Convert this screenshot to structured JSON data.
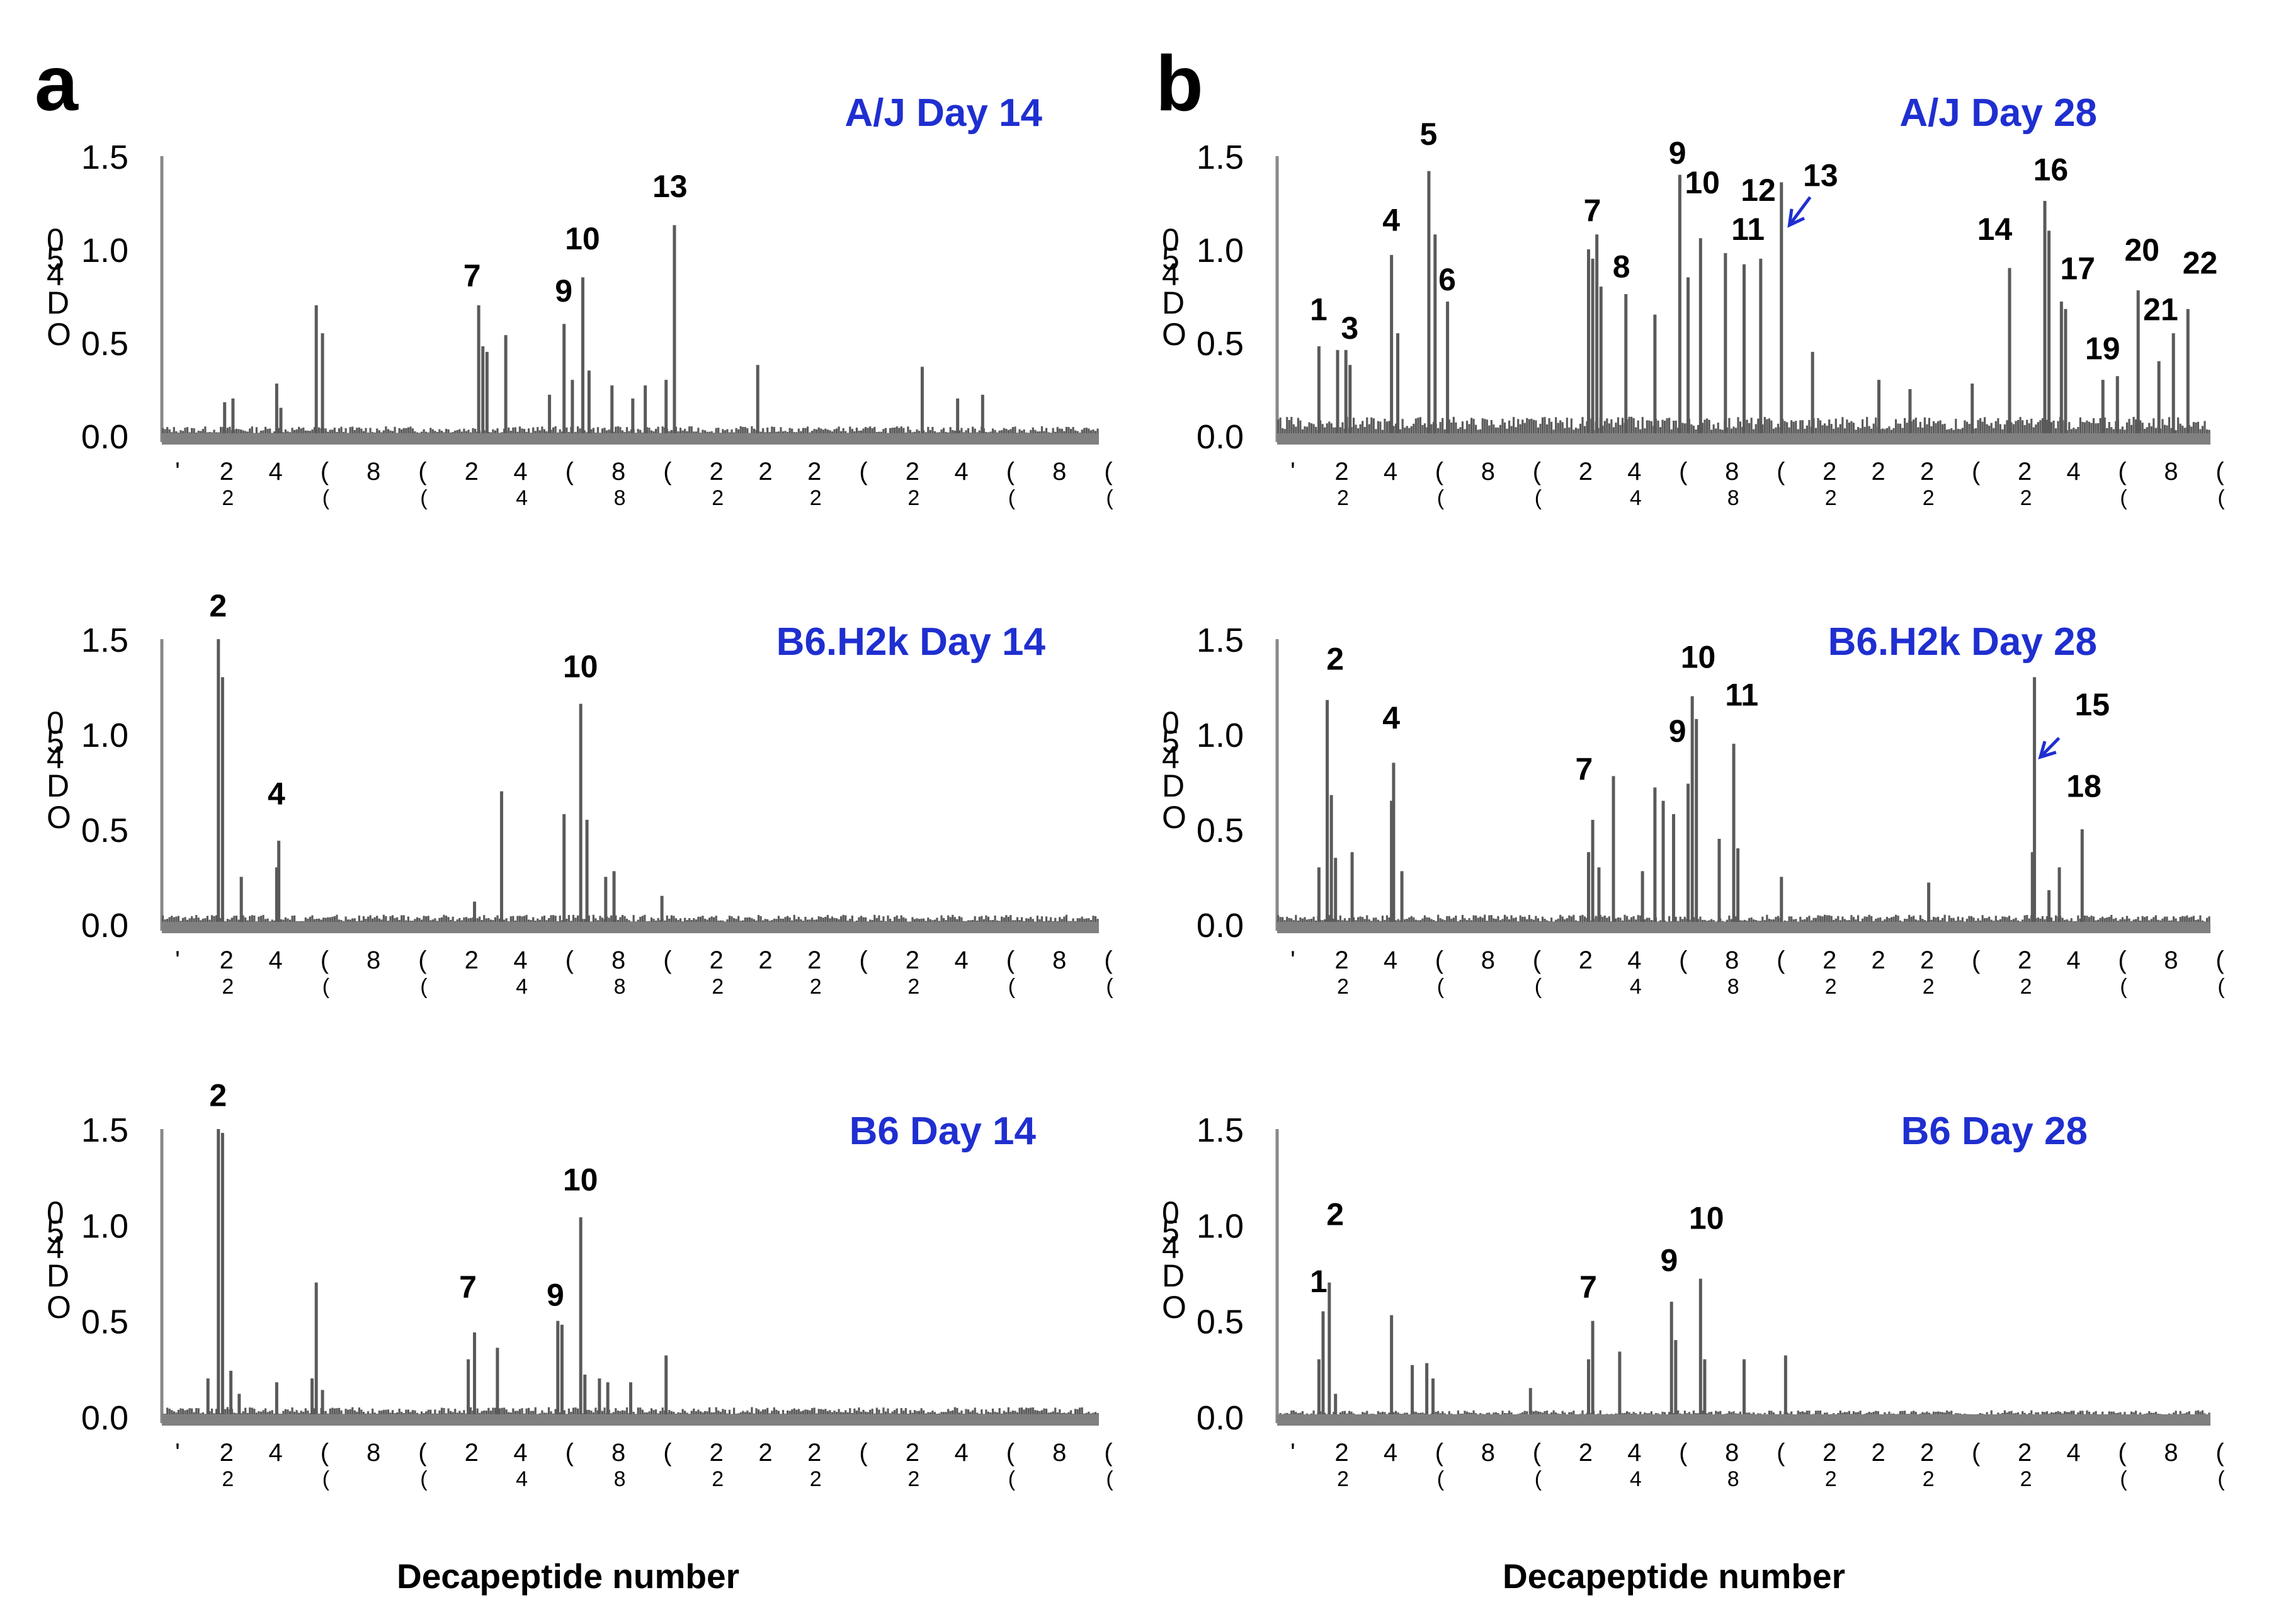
{
  "figure": {
    "panel_letters": [
      "a",
      "b"
    ],
    "xlabel": "Decapeptide number",
    "ylabel_glyphs": [
      "0",
      "5",
      "4",
      "D",
      "O"
    ],
    "tick_glyphs": [
      "'",
      "2",
      "4",
      "(",
      "8",
      "(",
      "2",
      "4",
      "(",
      "8",
      "(",
      "2",
      "2",
      "2",
      "(",
      "2",
      "4",
      "(",
      "8",
      "("
    ]
  },
  "colors": {
    "bars": "#5a5a5a",
    "axis": "#888888",
    "title": "#1f2fd0",
    "arrow": "#1f2fd0",
    "text": "#000000"
  },
  "chart_data": [
    {
      "type": "bar",
      "panel": "a",
      "title": "A/J   Day 14",
      "xlabel": "",
      "ylabel": "OD450",
      "yticks": [
        "0.0",
        "0.5",
        "1.0",
        "1.5"
      ],
      "ylim": [
        0,
        1.5
      ],
      "xlim": [
        0,
        450
      ],
      "baseline": 0.03,
      "peaks": [
        {
          "x": 30,
          "v": 0.18
        },
        {
          "x": 34,
          "v": 0.2
        },
        {
          "x": 55,
          "v": 0.28
        },
        {
          "x": 57,
          "v": 0.15
        },
        {
          "x": 74,
          "v": 0.7
        },
        {
          "x": 77,
          "v": 0.55
        },
        {
          "x": 152,
          "v": 0.7
        },
        {
          "x": 154,
          "v": 0.48
        },
        {
          "x": 156,
          "v": 0.45
        },
        {
          "x": 165,
          "v": 0.54
        },
        {
          "x": 186,
          "v": 0.22
        },
        {
          "x": 193,
          "v": 0.6
        },
        {
          "x": 197,
          "v": 0.3
        },
        {
          "x": 202,
          "v": 0.85
        },
        {
          "x": 205,
          "v": 0.35
        },
        {
          "x": 216,
          "v": 0.27
        },
        {
          "x": 226,
          "v": 0.2
        },
        {
          "x": 232,
          "v": 0.27
        },
        {
          "x": 242,
          "v": 0.3
        },
        {
          "x": 246,
          "v": 1.13
        },
        {
          "x": 286,
          "v": 0.38
        },
        {
          "x": 365,
          "v": 0.37
        },
        {
          "x": 382,
          "v": 0.2
        },
        {
          "x": 394,
          "v": 0.22
        }
      ],
      "annotations": [
        {
          "label": "7",
          "x": 149,
          "v": 0.8
        },
        {
          "label": "9",
          "x": 193,
          "v": 0.72
        },
        {
          "label": "10",
          "x": 202,
          "v": 1.0
        },
        {
          "label": "13",
          "x": 244,
          "v": 1.28
        }
      ]
    },
    {
      "type": "bar",
      "panel": "b",
      "title": "A/J   Day 28",
      "xlabel": "",
      "ylabel": "OD450",
      "yticks": [
        "0.0",
        "0.5",
        "1.0",
        "1.5"
      ],
      "ylim": [
        0,
        1.5
      ],
      "xlim": [
        0,
        450
      ],
      "baseline": 0.06,
      "peaks": [
        {
          "x": 20,
          "v": 0.48
        },
        {
          "x": 29,
          "v": 0.46
        },
        {
          "x": 33,
          "v": 0.46
        },
        {
          "x": 35,
          "v": 0.38
        },
        {
          "x": 55,
          "v": 0.97
        },
        {
          "x": 58,
          "v": 0.55
        },
        {
          "x": 73,
          "v": 1.42
        },
        {
          "x": 76,
          "v": 1.08
        },
        {
          "x": 82,
          "v": 0.72
        },
        {
          "x": 150,
          "v": 1.0
        },
        {
          "x": 152,
          "v": 0.95
        },
        {
          "x": 154,
          "v": 1.08
        },
        {
          "x": 156,
          "v": 0.8
        },
        {
          "x": 168,
          "v": 0.76
        },
        {
          "x": 182,
          "v": 0.65
        },
        {
          "x": 194,
          "v": 1.4
        },
        {
          "x": 198,
          "v": 0.85
        },
        {
          "x": 204,
          "v": 1.06
        },
        {
          "x": 216,
          "v": 0.98
        },
        {
          "x": 225,
          "v": 0.92
        },
        {
          "x": 233,
          "v": 0.95
        },
        {
          "x": 243,
          "v": 1.36
        },
        {
          "x": 258,
          "v": 0.45
        },
        {
          "x": 290,
          "v": 0.3
        },
        {
          "x": 305,
          "v": 0.25
        },
        {
          "x": 335,
          "v": 0.28
        },
        {
          "x": 353,
          "v": 0.9
        },
        {
          "x": 370,
          "v": 1.26
        },
        {
          "x": 372,
          "v": 1.1
        },
        {
          "x": 378,
          "v": 0.72
        },
        {
          "x": 380,
          "v": 0.68
        },
        {
          "x": 398,
          "v": 0.3
        },
        {
          "x": 405,
          "v": 0.32
        },
        {
          "x": 415,
          "v": 0.78
        },
        {
          "x": 425,
          "v": 0.4
        },
        {
          "x": 432,
          "v": 0.55
        },
        {
          "x": 439,
          "v": 0.68
        }
      ],
      "annotations": [
        {
          "label": "1",
          "x": 20,
          "v": 0.62
        },
        {
          "label": "3",
          "x": 35,
          "v": 0.52
        },
        {
          "label": "4",
          "x": 55,
          "v": 1.1
        },
        {
          "label": "5",
          "x": 73,
          "v": 1.56
        },
        {
          "label": "6",
          "x": 82,
          "v": 0.78
        },
        {
          "label": "7",
          "x": 152,
          "v": 1.15
        },
        {
          "label": "8",
          "x": 166,
          "v": 0.85
        },
        {
          "label": "9",
          "x": 193,
          "v": 1.46
        },
        {
          "label": "10",
          "x": 205,
          "v": 1.3
        },
        {
          "label": "11",
          "x": 227,
          "v": 1.05
        },
        {
          "label": "12",
          "x": 232,
          "v": 1.26
        },
        {
          "label": "13",
          "x": 262,
          "v": 1.34
        },
        {
          "label": "14",
          "x": 346,
          "v": 1.05
        },
        {
          "label": "16",
          "x": 373,
          "v": 1.37
        },
        {
          "label": "17",
          "x": 386,
          "v": 0.84
        },
        {
          "label": "19",
          "x": 398,
          "v": 0.41
        },
        {
          "label": "20",
          "x": 417,
          "v": 0.94
        },
        {
          "label": "21",
          "x": 426,
          "v": 0.62
        },
        {
          "label": "22",
          "x": 445,
          "v": 0.87
        }
      ],
      "arrows": [
        {
          "from_x": 257,
          "from_v": 1.28,
          "to_x": 247,
          "to_v": 1.13
        }
      ]
    },
    {
      "type": "bar",
      "panel": "a",
      "title": "B6.H2k   Day 14",
      "xlabel": "",
      "ylabel": "OD450",
      "yticks": [
        "0.0",
        "0.5",
        "1.0",
        "1.5"
      ],
      "ylim": [
        0,
        1.5
      ],
      "xlim": [
        0,
        450
      ],
      "baseline": 0.03,
      "peaks": [
        {
          "x": 27,
          "v": 1.5
        },
        {
          "x": 29,
          "v": 1.3
        },
        {
          "x": 38,
          "v": 0.25
        },
        {
          "x": 55,
          "v": 0.3
        },
        {
          "x": 56,
          "v": 0.44
        },
        {
          "x": 150,
          "v": 0.12
        },
        {
          "x": 163,
          "v": 0.7
        },
        {
          "x": 193,
          "v": 0.58
        },
        {
          "x": 201,
          "v": 1.16
        },
        {
          "x": 204,
          "v": 0.55
        },
        {
          "x": 213,
          "v": 0.25
        },
        {
          "x": 217,
          "v": 0.28
        },
        {
          "x": 240,
          "v": 0.15
        }
      ],
      "annotations": [
        {
          "label": "2",
          "x": 27,
          "v": 1.62
        },
        {
          "label": "4",
          "x": 55,
          "v": 0.63
        },
        {
          "label": "10",
          "x": 201,
          "v": 1.3
        }
      ]
    },
    {
      "type": "bar",
      "panel": "b",
      "title": "B6.H2k   Day 28",
      "xlabel": "",
      "ylabel": "OD450",
      "yticks": [
        "0.0",
        "0.5",
        "1.0",
        "1.5"
      ],
      "ylim": [
        0,
        1.5
      ],
      "xlim": [
        0,
        450
      ],
      "baseline": 0.03,
      "peaks": [
        {
          "x": 20,
          "v": 0.3
        },
        {
          "x": 24,
          "v": 1.18
        },
        {
          "x": 26,
          "v": 0.68
        },
        {
          "x": 28,
          "v": 0.35
        },
        {
          "x": 36,
          "v": 0.38
        },
        {
          "x": 55,
          "v": 0.65
        },
        {
          "x": 56,
          "v": 0.85
        },
        {
          "x": 60,
          "v": 0.28
        },
        {
          "x": 150,
          "v": 0.38
        },
        {
          "x": 152,
          "v": 0.55
        },
        {
          "x": 155,
          "v": 0.3
        },
        {
          "x": 162,
          "v": 0.78
        },
        {
          "x": 176,
          "v": 0.28
        },
        {
          "x": 182,
          "v": 0.72
        },
        {
          "x": 186,
          "v": 0.65
        },
        {
          "x": 191,
          "v": 0.58
        },
        {
          "x": 198,
          "v": 0.74
        },
        {
          "x": 200,
          "v": 1.2
        },
        {
          "x": 202,
          "v": 1.08
        },
        {
          "x": 213,
          "v": 0.45
        },
        {
          "x": 220,
          "v": 0.95
        },
        {
          "x": 222,
          "v": 0.4
        },
        {
          "x": 243,
          "v": 0.25
        },
        {
          "x": 314,
          "v": 0.22
        },
        {
          "x": 365,
          "v": 1.3
        },
        {
          "x": 364,
          "v": 0.38
        },
        {
          "x": 372,
          "v": 0.18
        },
        {
          "x": 377,
          "v": 0.3
        },
        {
          "x": 388,
          "v": 0.5
        }
      ],
      "annotations": [
        {
          "label": "2",
          "x": 28,
          "v": 1.34
        },
        {
          "label": "4",
          "x": 55,
          "v": 1.03
        },
        {
          "label": "7",
          "x": 148,
          "v": 0.76
        },
        {
          "label": "9",
          "x": 193,
          "v": 0.96
        },
        {
          "label": "10",
          "x": 203,
          "v": 1.35
        },
        {
          "label": "11",
          "x": 224,
          "v": 1.15
        },
        {
          "label": "15",
          "x": 393,
          "v": 1.1
        },
        {
          "label": "18",
          "x": 389,
          "v": 0.67
        }
      ],
      "arrows": [
        {
          "from_x": 377,
          "from_v": 0.98,
          "to_x": 368,
          "to_v": 0.88
        }
      ]
    },
    {
      "type": "bar",
      "panel": "a",
      "title": "B6   Day 14",
      "xlabel": "",
      "ylabel": "OD450",
      "yticks": [
        "0.0",
        "0.5",
        "1.0",
        "1.5"
      ],
      "ylim": [
        0,
        1.5
      ],
      "xlim": [
        0,
        450
      ],
      "baseline": 0.03,
      "peaks": [
        {
          "x": 22,
          "v": 0.2
        },
        {
          "x": 27,
          "v": 1.5
        },
        {
          "x": 29,
          "v": 1.48
        },
        {
          "x": 33,
          "v": 0.24
        },
        {
          "x": 37,
          "v": 0.12
        },
        {
          "x": 55,
          "v": 0.18
        },
        {
          "x": 72,
          "v": 0.2
        },
        {
          "x": 74,
          "v": 0.7
        },
        {
          "x": 77,
          "v": 0.14
        },
        {
          "x": 147,
          "v": 0.3
        },
        {
          "x": 150,
          "v": 0.44
        },
        {
          "x": 161,
          "v": 0.36
        },
        {
          "x": 190,
          "v": 0.5
        },
        {
          "x": 192,
          "v": 0.48
        },
        {
          "x": 201,
          "v": 1.04
        },
        {
          "x": 203,
          "v": 0.22
        },
        {
          "x": 210,
          "v": 0.2
        },
        {
          "x": 214,
          "v": 0.18
        },
        {
          "x": 225,
          "v": 0.18
        },
        {
          "x": 242,
          "v": 0.32
        }
      ],
      "annotations": [
        {
          "label": "2",
          "x": 27,
          "v": 1.62
        },
        {
          "label": "7",
          "x": 147,
          "v": 0.62
        },
        {
          "label": "9",
          "x": 189,
          "v": 0.58
        },
        {
          "label": "10",
          "x": 201,
          "v": 1.18
        }
      ]
    },
    {
      "type": "bar",
      "panel": "b",
      "title": "B6   Day 28",
      "xlabel": "",
      "ylabel": "OD450",
      "yticks": [
        "0.0",
        "0.5",
        "1.0",
        "1.5"
      ],
      "ylim": [
        0,
        1.5
      ],
      "xlim": [
        0,
        450
      ],
      "baseline": 0.02,
      "peaks": [
        {
          "x": 20,
          "v": 0.3
        },
        {
          "x": 22,
          "v": 0.55
        },
        {
          "x": 25,
          "v": 0.7
        },
        {
          "x": 28,
          "v": 0.12
        },
        {
          "x": 55,
          "v": 0.53
        },
        {
          "x": 65,
          "v": 0.27
        },
        {
          "x": 72,
          "v": 0.28
        },
        {
          "x": 75,
          "v": 0.2
        },
        {
          "x": 122,
          "v": 0.15
        },
        {
          "x": 150,
          "v": 0.3
        },
        {
          "x": 152,
          "v": 0.5
        },
        {
          "x": 165,
          "v": 0.34
        },
        {
          "x": 190,
          "v": 0.6
        },
        {
          "x": 192,
          "v": 0.4
        },
        {
          "x": 204,
          "v": 0.72
        },
        {
          "x": 206,
          "v": 0.3
        },
        {
          "x": 225,
          "v": 0.3
        },
        {
          "x": 245,
          "v": 0.32
        }
      ],
      "annotations": [
        {
          "label": "1",
          "x": 20,
          "v": 0.65
        },
        {
          "label": "2",
          "x": 28,
          "v": 1.0
        },
        {
          "label": "7",
          "x": 150,
          "v": 0.62
        },
        {
          "label": "9",
          "x": 189,
          "v": 0.76
        },
        {
          "label": "10",
          "x": 207,
          "v": 0.98
        }
      ]
    }
  ]
}
